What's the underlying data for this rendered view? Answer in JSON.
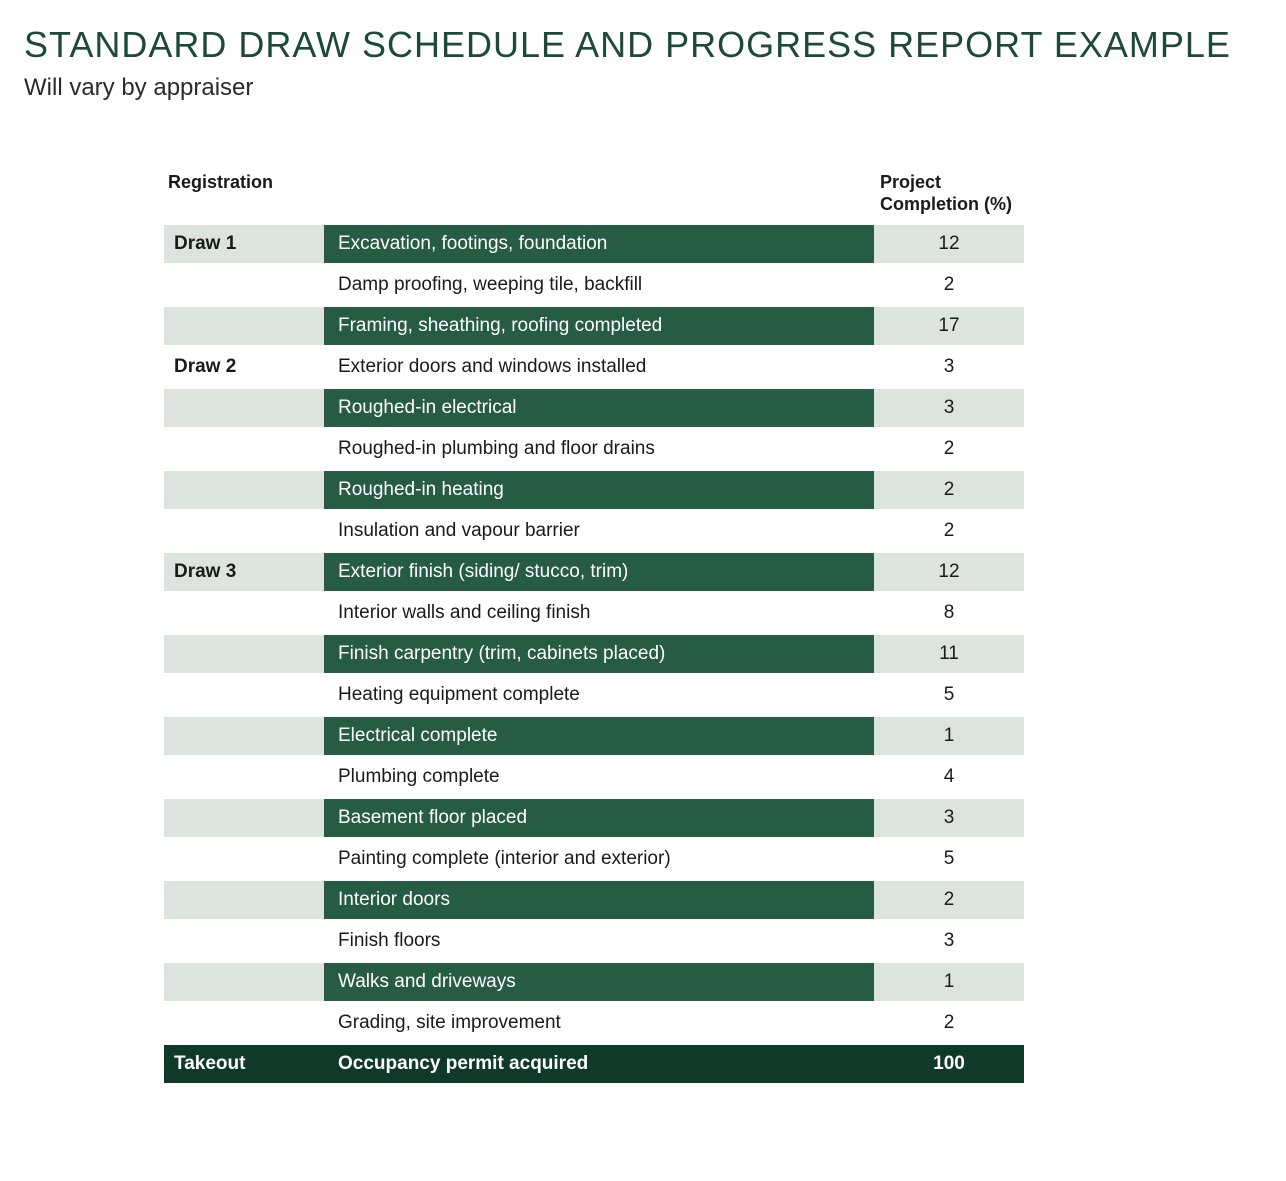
{
  "title": "STANDARD DRAW SCHEDULE AND PROGRESS REPORT EXAMPLE",
  "subtitle": "Will vary by appraiser",
  "headers": {
    "registration": "Registration",
    "completion_line1": "Project",
    "completion_line2": "Completion (%)"
  },
  "colors": {
    "title": "#1d4a38",
    "dark_green": "#265b44",
    "light_green": "#dde4df",
    "takeout_bg": "#0f3a2a",
    "text": "#1a1a1a",
    "white": "#ffffff"
  },
  "rows": [
    {
      "reg": "Draw 1",
      "desc": "Excavation, footings, foundation",
      "pct": "12",
      "reg_bg": "light",
      "desc_bg": "dark",
      "pct_bg": "light"
    },
    {
      "reg": "",
      "desc": "Damp proofing, weeping tile, backfill",
      "pct": "2",
      "reg_bg": "white",
      "desc_bg": "white",
      "pct_bg": "white"
    },
    {
      "reg": "",
      "desc": "Framing, sheathing, roofing completed",
      "pct": "17",
      "reg_bg": "light",
      "desc_bg": "dark",
      "pct_bg": "light"
    },
    {
      "reg": "Draw 2",
      "desc": "Exterior doors and windows installed",
      "pct": "3",
      "reg_bg": "white",
      "desc_bg": "white",
      "pct_bg": "white"
    },
    {
      "reg": "",
      "desc": "Roughed-in electrical",
      "pct": "3",
      "reg_bg": "light",
      "desc_bg": "dark",
      "pct_bg": "light"
    },
    {
      "reg": "",
      "desc": "Roughed-in plumbing and floor drains",
      "pct": "2",
      "reg_bg": "white",
      "desc_bg": "white",
      "pct_bg": "white"
    },
    {
      "reg": "",
      "desc": "Roughed-in heating",
      "pct": "2",
      "reg_bg": "light",
      "desc_bg": "dark",
      "pct_bg": "light"
    },
    {
      "reg": "",
      "desc": "Insulation and vapour barrier",
      "pct": "2",
      "reg_bg": "white",
      "desc_bg": "white",
      "pct_bg": "white"
    },
    {
      "reg": "Draw 3",
      "desc": "Exterior finish (siding/ stucco, trim)",
      "pct": "12",
      "reg_bg": "light",
      "desc_bg": "dark",
      "pct_bg": "light"
    },
    {
      "reg": "",
      "desc": "Interior walls and ceiling finish",
      "pct": "8",
      "reg_bg": "white",
      "desc_bg": "white",
      "pct_bg": "white"
    },
    {
      "reg": "",
      "desc": "Finish carpentry (trim, cabinets placed)",
      "pct": "11",
      "reg_bg": "light",
      "desc_bg": "dark",
      "pct_bg": "light"
    },
    {
      "reg": "",
      "desc": "Heating equipment complete",
      "pct": "5",
      "reg_bg": "white",
      "desc_bg": "white",
      "pct_bg": "white"
    },
    {
      "reg": "",
      "desc": "Electrical complete",
      "pct": "1",
      "reg_bg": "light",
      "desc_bg": "dark",
      "pct_bg": "light"
    },
    {
      "reg": "",
      "desc": "Plumbing complete",
      "pct": "4",
      "reg_bg": "white",
      "desc_bg": "white",
      "pct_bg": "white"
    },
    {
      "reg": "",
      "desc": "Basement floor placed",
      "pct": "3",
      "reg_bg": "light",
      "desc_bg": "dark",
      "pct_bg": "light"
    },
    {
      "reg": "",
      "desc": "Painting complete (interior and exterior)",
      "pct": "5",
      "reg_bg": "white",
      "desc_bg": "white",
      "pct_bg": "white"
    },
    {
      "reg": "",
      "desc": "Interior doors",
      "pct": "2",
      "reg_bg": "light",
      "desc_bg": "dark",
      "pct_bg": "light"
    },
    {
      "reg": "",
      "desc": "Finish floors",
      "pct": "3",
      "reg_bg": "white",
      "desc_bg": "white",
      "pct_bg": "white"
    },
    {
      "reg": "",
      "desc": "Walks and driveways",
      "pct": "1",
      "reg_bg": "light",
      "desc_bg": "dark",
      "pct_bg": "light"
    },
    {
      "reg": "",
      "desc": "Grading, site improvement",
      "pct": "2",
      "reg_bg": "white",
      "desc_bg": "white",
      "pct_bg": "white"
    }
  ],
  "takeout": {
    "reg": "Takeout",
    "desc": "Occupancy permit acquired",
    "pct": "100"
  }
}
